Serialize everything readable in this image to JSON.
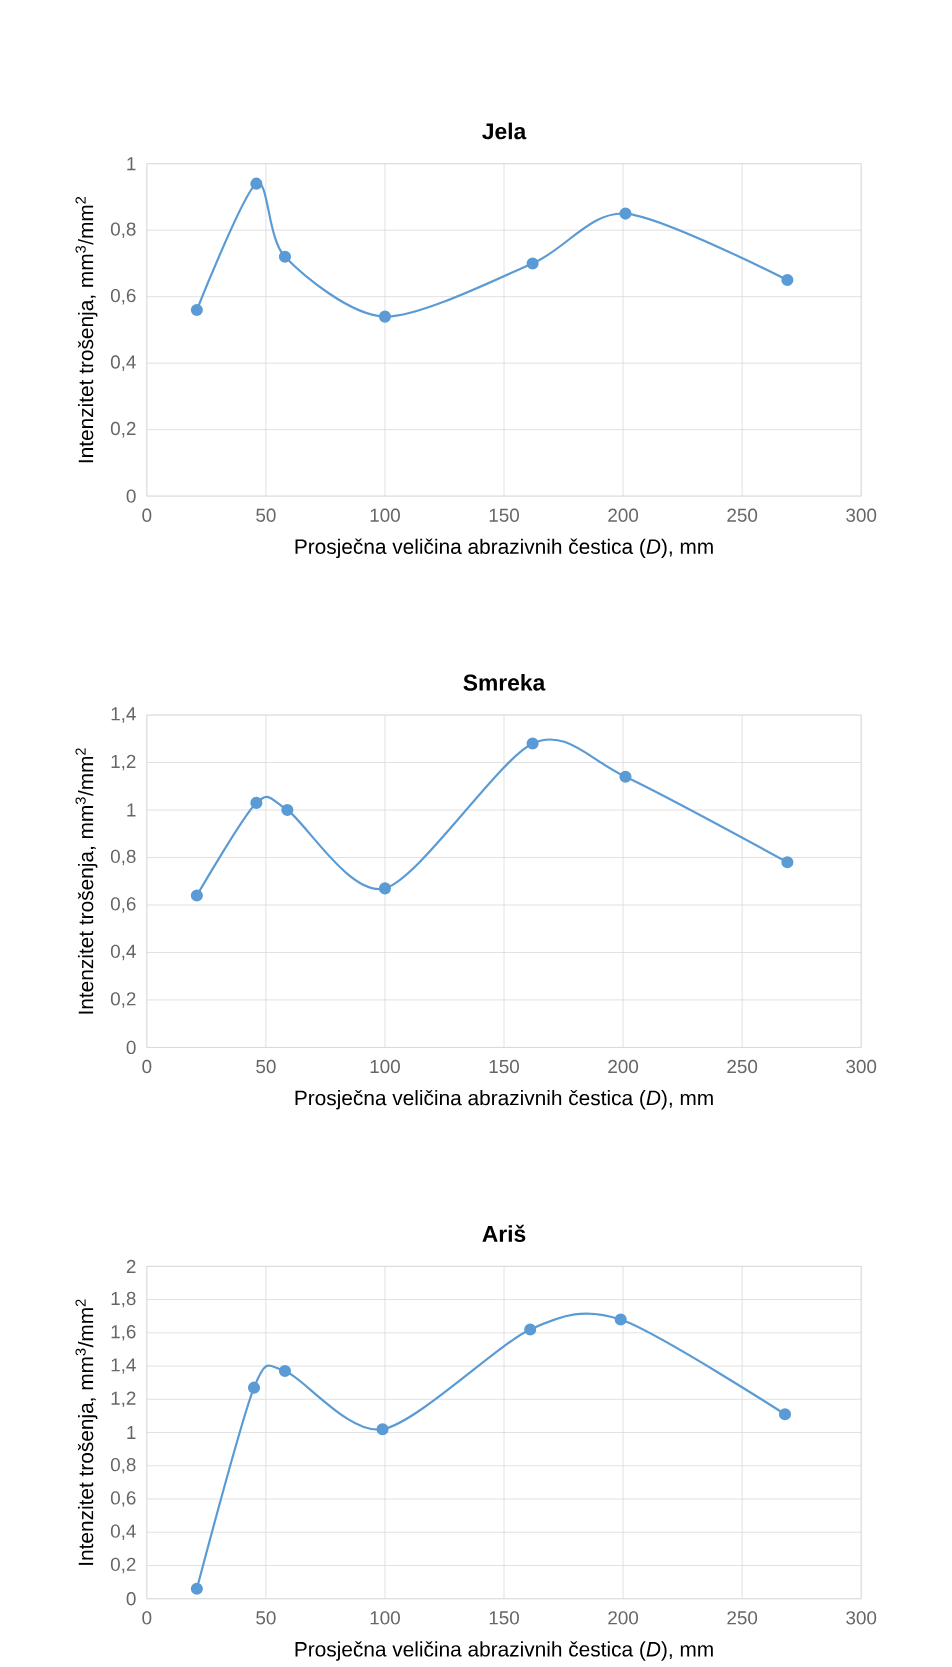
{
  "chart_data": [
    {
      "type": "line",
      "title": "Jela",
      "xlabel": "Prosječna veličina abrazivnih čestica (*D*), mm",
      "ylabel": "Intenzitet trošenja,  mm$^{3}$/mm$^{2}$",
      "x": [
        21,
        46,
        58,
        100,
        162,
        201,
        269
      ],
      "values": [
        0.56,
        0.94,
        0.72,
        0.54,
        0.7,
        0.85,
        0.65
      ],
      "color": "#5b9bd5",
      "xlim": [
        0,
        300
      ],
      "ylim": [
        0,
        1
      ],
      "xticks": [
        0,
        50,
        100,
        150,
        200,
        250,
        300
      ],
      "yticks": [
        0,
        {
          "value": 0.2,
          "label": "0,2"
        },
        {
          "value": 0.4,
          "label": "0,4"
        },
        {
          "value": 0.6,
          "label": "0,6"
        },
        {
          "value": 0.8,
          "label": "0,8"
        },
        1
      ],
      "grid": true,
      "marker": "circle",
      "line_style": "solid"
    },
    {
      "type": "line",
      "title": "Smreka",
      "xlabel": "Prosječna veličina abrazivnih čestica (*D*), mm",
      "ylabel": "Intenzitet trošenja,  mm$^{3}$/mm$^{2}$",
      "x": [
        21,
        46,
        59,
        100,
        162,
        201,
        269
      ],
      "values": [
        0.64,
        1.03,
        1.0,
        0.67,
        1.28,
        1.14,
        0.78
      ],
      "color": "#5b9bd5",
      "xlim": [
        0,
        300
      ],
      "ylim": [
        0,
        1.4
      ],
      "xticks": [
        0,
        50,
        100,
        150,
        200,
        250,
        300
      ],
      "yticks": [
        0,
        {
          "value": 0.2,
          "label": "0,2"
        },
        {
          "value": 0.4,
          "label": "0,4"
        },
        {
          "value": 0.6,
          "label": "0,6"
        },
        {
          "value": 0.8,
          "label": "0,8"
        },
        1,
        {
          "value": 1.2,
          "label": "1,2"
        },
        {
          "value": 1.4,
          "label": "1,4"
        }
      ],
      "grid": true,
      "marker": "circle",
      "line_style": "solid"
    },
    {
      "type": "line",
      "title": "Ariš",
      "xlabel": "Prosječna veličina abrazivnih čestica (*D*), mm",
      "ylabel": "Intenzitet trošenja,  mm$^{3}$/mm$^{2}$",
      "x": [
        21,
        45,
        58,
        99,
        161,
        199,
        268
      ],
      "values": [
        0.06,
        1.27,
        1.37,
        1.02,
        1.62,
        1.68,
        1.11
      ],
      "color": "#5b9bd5",
      "xlim": [
        0,
        300
      ],
      "ylim": [
        0,
        2
      ],
      "xticks": [
        0,
        50,
        100,
        150,
        200,
        250,
        300
      ],
      "yticks": [
        0,
        {
          "value": 0.2,
          "label": "0,2"
        },
        {
          "value": 0.4,
          "label": "0,4"
        },
        {
          "value": 0.6,
          "label": "0,6"
        },
        {
          "value": 0.8,
          "label": "0,8"
        },
        1,
        {
          "value": 1.2,
          "label": "1,2"
        },
        {
          "value": 1.4,
          "label": "1,4"
        },
        {
          "value": 1.6,
          "label": "1,6"
        },
        {
          "value": 1.8,
          "label": "1,8"
        },
        2
      ],
      "grid": true,
      "marker": "circle",
      "line_style": "solid"
    }
  ]
}
